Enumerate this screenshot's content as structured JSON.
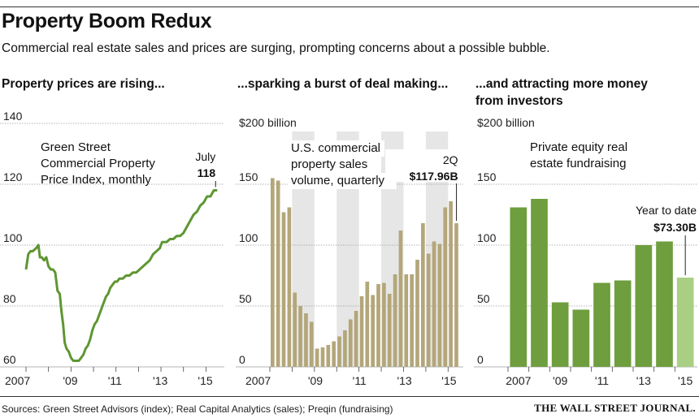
{
  "header": {
    "title": "Property Boom Redux",
    "subtitle": "Commercial real estate sales and prices are surging, prompting concerns about a possible bubble."
  },
  "footer": {
    "sources": "Sources: Green Street Advisors (index); Real Capital Analytics (sales); Preqin (fundraising)",
    "brand": "THE WALL STREET JOURNAL."
  },
  "colors": {
    "bar_dark": "#6e9e3d",
    "bar_light": "#a9cf84",
    "line": "#5e9632",
    "sales_bar": "#b3a679",
    "shade": "#e6e6e6",
    "grid": "#9a9a9a"
  },
  "chart_data": [
    {
      "type": "line",
      "panel_title": "Property prices are rising...",
      "title": "Green Street Commercial Property Price Index, monthly",
      "title_lines": [
        "Green Street",
        "Commercial Property",
        "Price Index, monthly"
      ],
      "ylim": [
        60,
        140
      ],
      "yticks": [
        140,
        120,
        100,
        80,
        60
      ],
      "xlim": [
        2007,
        2015.6
      ],
      "xticks": [
        2007,
        2008,
        2009,
        2010,
        2011,
        2012,
        2013,
        2014,
        2015
      ],
      "xtick_labels": [
        "2007",
        "",
        "'09",
        "",
        "'11",
        "",
        "'13",
        "",
        "'15"
      ],
      "x": [
        2007.0,
        2007.1,
        2007.2,
        2007.3,
        2007.45,
        2007.55,
        2007.62,
        2007.7,
        2007.8,
        2007.9,
        2008.0,
        2008.1,
        2008.2,
        2008.3,
        2008.4,
        2008.5,
        2008.58,
        2008.65,
        2008.72,
        2008.8,
        2008.9,
        2009.0,
        2009.1,
        2009.2,
        2009.3,
        2009.35,
        2009.45,
        2009.55,
        2009.65,
        2009.75,
        2009.85,
        2009.95,
        2010.05,
        2010.15,
        2010.25,
        2010.35,
        2010.45,
        2010.55,
        2010.65,
        2010.75,
        2010.85,
        2010.95,
        2011.05,
        2011.15,
        2011.3,
        2011.45,
        2011.6,
        2011.75,
        2011.9,
        2012.05,
        2012.2,
        2012.35,
        2012.5,
        2012.65,
        2012.8,
        2012.95,
        2013.05,
        2013.15,
        2013.25,
        2013.4,
        2013.55,
        2013.7,
        2013.85,
        2014.0,
        2014.15,
        2014.3,
        2014.45,
        2014.6,
        2014.75,
        2014.9,
        2015.05,
        2015.2,
        2015.35,
        2015.5
      ],
      "y": [
        92,
        97,
        98,
        98,
        99,
        100,
        96,
        96,
        95,
        96,
        93,
        92,
        92,
        91,
        85,
        84,
        78,
        74,
        68,
        66,
        65,
        63,
        62,
        62,
        62,
        62,
        63,
        64,
        66,
        67,
        69,
        72,
        74,
        75,
        77,
        79,
        81,
        83,
        84,
        86,
        87,
        88,
        88,
        89,
        89,
        90,
        90,
        91,
        91,
        92,
        93,
        94,
        95,
        97,
        98,
        99,
        101,
        101,
        101,
        102,
        102,
        103,
        103,
        104,
        106,
        108,
        110,
        111,
        113,
        114,
        116,
        116,
        118,
        118
      ],
      "annotation": {
        "label": "July",
        "value": "118"
      }
    },
    {
      "type": "bar",
      "panel_title": "...sparking a burst of deal making...",
      "title": "U.S. commercial property sales volume, quarterly",
      "title_lines": [
        "U.S. commercial",
        "property sales",
        "volume, quarterly"
      ],
      "unit_label": "$200 billion",
      "ylim": [
        0,
        200
      ],
      "yticks": [
        150,
        100,
        50,
        0
      ],
      "start_year": 2007,
      "xtick_labels": [
        "2007",
        "",
        "'09",
        "",
        "'11",
        "",
        "'13",
        "",
        "'15"
      ],
      "values": [
        155,
        153,
        127,
        131,
        61,
        50,
        44,
        37,
        15,
        16,
        18,
        21,
        25,
        30,
        39,
        46,
        58,
        70,
        59,
        68,
        69,
        60,
        76,
        112,
        76,
        76,
        88,
        118,
        93,
        103,
        101,
        131,
        136,
        117.96
      ],
      "annotation": {
        "label": "2Q",
        "value": "$117.96B"
      }
    },
    {
      "type": "bar",
      "panel_title": "...and attracting more money from investors",
      "panel_title_lines": [
        "...and attracting more money",
        "from investors"
      ],
      "title": "Private equity real estate fundraising",
      "title_lines": [
        "Private equity real",
        "estate fundraising"
      ],
      "unit_label": "$200 billion",
      "ylim": [
        0,
        200
      ],
      "yticks": [
        150,
        100,
        50,
        0
      ],
      "categories": [
        "2007",
        "2008",
        "2009",
        "2010",
        "2011",
        "2012",
        "2013",
        "2014",
        "2015"
      ],
      "xtick_labels": [
        "2007",
        "",
        "'09",
        "",
        "'11",
        "",
        "'13",
        "",
        "'15"
      ],
      "values": [
        131,
        138,
        53,
        47,
        69,
        71,
        100,
        103,
        73.3
      ],
      "annotation": {
        "label": "Year to date",
        "value": "$73.30B"
      }
    }
  ]
}
